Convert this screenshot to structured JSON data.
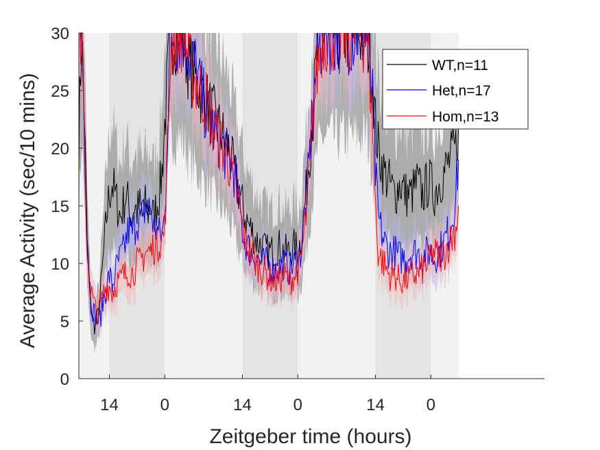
{
  "chart_data": {
    "type": "line",
    "title": "",
    "xlabel": "Zeitgeber time (hours)",
    "ylabel": "Average Activity (sec/10 mins)",
    "ylim": [
      0,
      30
    ],
    "yticks": [
      0,
      5,
      10,
      15,
      20,
      25,
      30
    ],
    "xlim": [
      0,
      84
    ],
    "xticks": [
      {
        "pos": 5.5,
        "label": "14"
      },
      {
        "pos": 15.5,
        "label": "0"
      },
      {
        "pos": 29.5,
        "label": "14"
      },
      {
        "pos": 39.5,
        "label": "0"
      },
      {
        "pos": 53.5,
        "label": "14"
      },
      {
        "pos": 63.5,
        "label": "0"
      }
    ],
    "data_range_x": [
      0,
      68.5
    ],
    "light_periods": [
      [
        0,
        5.5
      ],
      [
        15.5,
        29.5
      ],
      [
        39.5,
        53.5
      ]
    ],
    "dark_periods": [
      [
        5.5,
        15.5
      ],
      [
        29.5,
        39.5
      ],
      [
        53.5,
        63.5
      ]
    ],
    "extra_light": [
      63.5,
      68.5
    ],
    "grid": false,
    "legend_position": "top-right",
    "series": [
      {
        "name": "WT,n=11",
        "color": "#000000",
        "shade": "#9a9a9a",
        "x": [
          0,
          0.5,
          1,
          1.5,
          2,
          2.5,
          3,
          3.5,
          4,
          4.5,
          5,
          5.5,
          6,
          6.5,
          7,
          7.5,
          8,
          8.5,
          9,
          9.5,
          10,
          10.5,
          11,
          11.5,
          12,
          12.5,
          13,
          13.5,
          14,
          14.5,
          15,
          15.5,
          16,
          16.5,
          17,
          17.5,
          18,
          19,
          20,
          21,
          22,
          23,
          24,
          25,
          26,
          27,
          28,
          29,
          29.5,
          30,
          31,
          32,
          33,
          34,
          35,
          36,
          37,
          38,
          39,
          39.5,
          40,
          41,
          42,
          43,
          44,
          45,
          46,
          47,
          48,
          49,
          50,
          51,
          52,
          53,
          53.5,
          54,
          55,
          56,
          57,
          58,
          59,
          60,
          61,
          62,
          63,
          63.5,
          64,
          65,
          66,
          67,
          68,
          68.5
        ],
        "values": [
          20.5,
          30,
          23,
          12,
          7,
          5,
          4.5,
          5.5,
          8,
          11,
          14,
          16,
          17,
          16,
          15,
          14,
          15,
          16,
          15,
          14,
          15,
          14.5,
          15,
          14,
          15,
          14.5,
          15,
          14,
          15,
          16,
          18,
          22,
          26,
          30,
          30,
          30,
          30,
          29,
          27,
          26,
          25,
          24,
          23,
          22,
          21,
          20,
          18,
          16,
          15,
          14,
          13,
          12,
          11.5,
          11,
          11,
          11.5,
          11,
          11,
          11.5,
          11,
          12,
          16,
          22,
          28,
          30,
          30,
          30,
          30,
          30,
          30,
          30,
          30,
          30,
          26,
          22,
          20,
          18,
          17,
          16,
          17,
          16,
          16,
          17,
          16,
          17,
          17,
          16,
          17,
          18,
          19,
          20,
          22
        ]
      },
      {
        "name": "Het,n=17",
        "color": "#0000ff",
        "shade": "#b8b8f0",
        "x": [
          0,
          0.5,
          1,
          1.5,
          2,
          2.5,
          3,
          3.5,
          4,
          4.5,
          5,
          5.5,
          6,
          6.5,
          7,
          7.5,
          8,
          8.5,
          9,
          9.5,
          10,
          10.5,
          11,
          11.5,
          12,
          12.5,
          13,
          13.5,
          14,
          14.5,
          15,
          15.5,
          16,
          16.5,
          17,
          17.5,
          18,
          19,
          20,
          21,
          22,
          23,
          24,
          25,
          26,
          27,
          28,
          29,
          29.5,
          30,
          31,
          32,
          33,
          34,
          35,
          36,
          37,
          38,
          39,
          39.5,
          40,
          41,
          42,
          43,
          44,
          45,
          46,
          47,
          48,
          49,
          50,
          51,
          52,
          53,
          53.5,
          54,
          55,
          56,
          57,
          58,
          59,
          60,
          61,
          62,
          63,
          63.5,
          64,
          65,
          66,
          67,
          68,
          68.5
        ],
        "values": [
          30,
          30,
          22,
          12,
          8,
          6,
          5.5,
          5,
          5.5,
          7,
          8,
          9,
          8,
          9,
          10,
          10.5,
          11,
          12,
          13,
          12.5,
          13,
          14,
          13.5,
          14,
          15,
          14.5,
          15,
          13,
          13,
          12.5,
          12.5,
          14,
          22,
          30,
          30,
          30,
          30,
          30,
          28,
          27,
          25,
          23,
          22,
          21,
          20,
          19,
          18,
          15,
          13,
          12,
          11,
          10.5,
          10,
          10,
          9.5,
          9.5,
          10,
          9.5,
          10,
          10.5,
          11,
          15,
          22,
          28,
          30,
          30,
          30,
          30,
          30,
          30,
          30,
          30,
          30,
          24,
          18,
          14,
          12,
          11,
          11,
          10.5,
          10.5,
          11,
          11,
          10.5,
          11,
          11,
          10.5,
          11,
          12,
          13,
          16,
          19
        ]
      },
      {
        "name": "Hom,n=13",
        "color": "#ff0000",
        "shade": "#f2b8b8",
        "x": [
          0,
          0.5,
          1,
          1.5,
          2,
          2.5,
          3,
          3.5,
          4,
          4.5,
          5,
          5.5,
          6,
          6.5,
          7,
          7.5,
          8,
          8.5,
          9,
          9.5,
          10,
          10.5,
          11,
          11.5,
          12,
          12.5,
          13,
          13.5,
          14,
          14.5,
          15,
          15.5,
          16,
          16.5,
          17,
          17.5,
          18,
          19,
          20,
          21,
          22,
          23,
          24,
          25,
          26,
          27,
          28,
          29,
          29.5,
          30,
          31,
          32,
          33,
          34,
          35,
          36,
          37,
          38,
          39,
          39.5,
          40,
          41,
          42,
          43,
          44,
          45,
          46,
          47,
          48,
          49,
          50,
          51,
          52,
          53,
          53.5,
          54,
          55,
          56,
          57,
          58,
          59,
          60,
          61,
          62,
          63,
          63.5,
          64,
          65,
          66,
          67,
          68,
          68.5
        ],
        "values": [
          30,
          30,
          20,
          11,
          8,
          7,
          6,
          5.5,
          6.5,
          7.5,
          8,
          8,
          7.5,
          8,
          8.5,
          8.5,
          9,
          9,
          9.5,
          9,
          9.5,
          10,
          10,
          10.5,
          11,
          11,
          11,
          11.5,
          11.5,
          12,
          12,
          13,
          20,
          28,
          30,
          30,
          30,
          30,
          27,
          26,
          25,
          24,
          22,
          21,
          20,
          19,
          17,
          15,
          13,
          12,
          11,
          10,
          9.5,
          9,
          8.5,
          8.5,
          9,
          8.5,
          9,
          9.5,
          10,
          14,
          21,
          27,
          30,
          30,
          30,
          30,
          30,
          30,
          30,
          30,
          30,
          22,
          15,
          11,
          10,
          9,
          9,
          8.5,
          8.5,
          9,
          9,
          9.5,
          10,
          10.5,
          11,
          10.5,
          11,
          12,
          13,
          15
        ]
      }
    ]
  }
}
